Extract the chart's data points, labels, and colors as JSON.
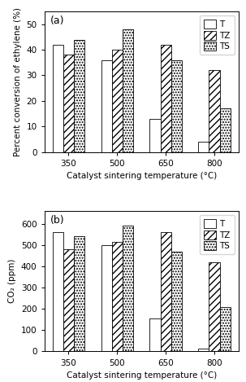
{
  "categories": [
    "350",
    "500",
    "650",
    "800"
  ],
  "top": {
    "T": [
      42,
      36,
      13,
      4
    ],
    "TZ": [
      38,
      40,
      42,
      32
    ],
    "TS": [
      44,
      48,
      36,
      17
    ],
    "ylabel": "Percent conversion of ethylene (%)",
    "ylim": [
      0,
      55
    ],
    "yticks": [
      0,
      10,
      20,
      30,
      40,
      50
    ],
    "label": "(a)"
  },
  "bottom": {
    "T": [
      560,
      500,
      155,
      15
    ],
    "TZ": [
      480,
      515,
      560,
      420
    ],
    "TS": [
      540,
      590,
      470,
      210
    ],
    "ylabel": "CO₂ (ppm)",
    "ylim": [
      0,
      660
    ],
    "yticks": [
      0,
      100,
      200,
      300,
      400,
      500,
      600
    ],
    "label": "(b)"
  },
  "xlabel": "Catalyst sintering temperature (°C)",
  "bar_width": 0.22,
  "edgecolor": "#000000",
  "hatch_TZ": "////",
  "hatch_TS": ".....",
  "legend_labels": [
    "T",
    "TZ",
    "TS"
  ],
  "fontsize": 7.5,
  "tick_fontsize": 7.5,
  "label_fontsize": 9
}
